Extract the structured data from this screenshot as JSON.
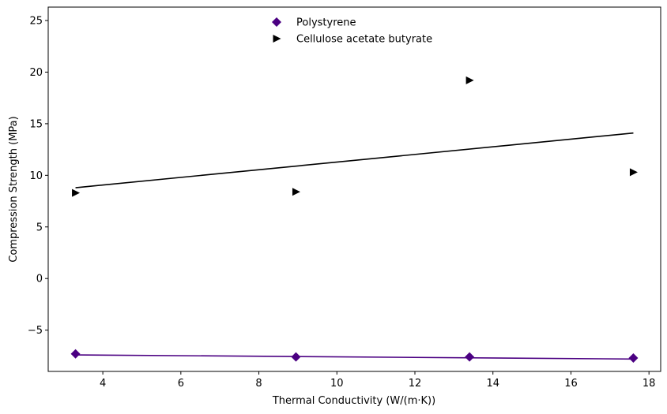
{
  "chart_data": {
    "type": "scatter",
    "title": "",
    "xlabel": "Thermal Conductivity (W/(m·K))",
    "ylabel": "Compression Strength (MPa)",
    "xlim": [
      2.6,
      18.3
    ],
    "ylim": [
      -9.0,
      26.3
    ],
    "xticks": [
      4,
      6,
      8,
      10,
      12,
      14,
      16,
      18
    ],
    "yticks": [
      -5,
      0,
      5,
      10,
      15,
      20,
      25
    ],
    "ytick_labels": [
      "−5",
      "0",
      "5",
      "10",
      "15",
      "20",
      "25"
    ],
    "grid": false,
    "legend_position": "top-center",
    "series": [
      {
        "name": "Polystyrene",
        "marker": "diamond",
        "color": "#4b0082",
        "x": [
          3.3,
          8.95,
          13.4,
          17.6
        ],
        "y": [
          -7.3,
          -7.6,
          -7.6,
          -7.7
        ],
        "trendline": {
          "x": [
            3.3,
            17.6
          ],
          "y": [
            -7.4,
            -7.8
          ]
        }
      },
      {
        "name": "Cellulose acetate butyrate",
        "marker": "triangle-right",
        "color": "#000000",
        "x": [
          3.3,
          8.95,
          13.4,
          17.6
        ],
        "y": [
          8.3,
          8.4,
          19.2,
          10.3
        ],
        "trendline": {
          "x": [
            3.3,
            17.6
          ],
          "y": [
            8.8,
            14.1
          ]
        }
      }
    ]
  }
}
